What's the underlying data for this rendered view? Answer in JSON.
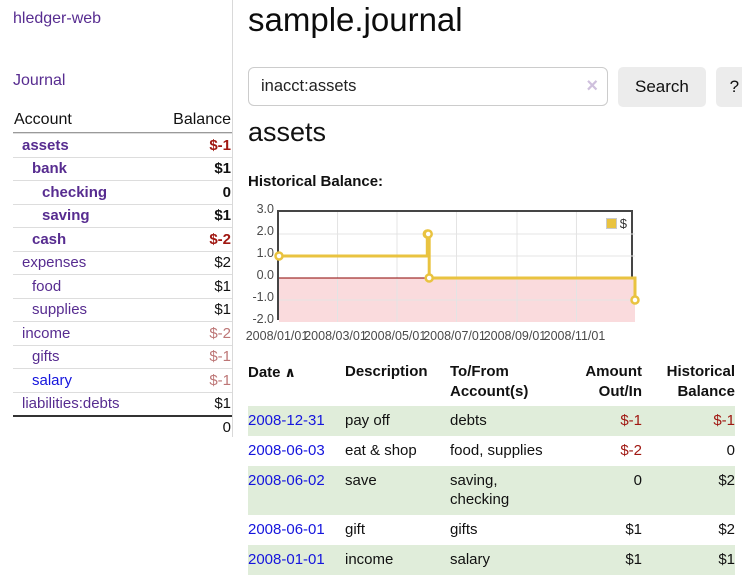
{
  "app": {
    "title": "hledger-web"
  },
  "sidebar": {
    "journal_link": "Journal",
    "accounts": {
      "header": {
        "account": "Account",
        "balance": "Balance"
      },
      "rows": [
        {
          "name": "assets",
          "balance": "$-1"
        },
        {
          "name": "bank",
          "balance": "$1"
        },
        {
          "name": "checking",
          "balance": "0"
        },
        {
          "name": "saving",
          "balance": "$1"
        },
        {
          "name": "cash",
          "balance": "$-2"
        },
        {
          "name": "expenses",
          "balance": "$2"
        },
        {
          "name": "food",
          "balance": "$1"
        },
        {
          "name": "supplies",
          "balance": "$1"
        },
        {
          "name": "income",
          "balance": "$-2"
        },
        {
          "name": "gifts",
          "balance": "$-1"
        },
        {
          "name": "salary",
          "balance": "$-1"
        },
        {
          "name": "liabilities:debts",
          "balance": "$1"
        }
      ],
      "total": "0"
    }
  },
  "header": {
    "title": "sample.journal"
  },
  "search": {
    "query": "inacct:assets",
    "clear_icon": "×",
    "search_button": "Search",
    "help_button": "?"
  },
  "main": {
    "account_heading": "assets"
  },
  "chart_data": {
    "type": "line",
    "style": "step",
    "title": "Historical Balance:",
    "x_domain": [
      "2008-01-01",
      "2008-12-31"
    ],
    "ylim": [
      -2,
      3
    ],
    "y_ticks": [
      "3.0",
      "2.0",
      "1.0",
      "0.0",
      "-1.0",
      "-2.0"
    ],
    "x_ticks": [
      "2008/01/01",
      "2008/03/01",
      "2008/05/01",
      "2008/07/01",
      "2008/09/01",
      "2008/11/01"
    ],
    "series": [
      {
        "name": "$",
        "color": "#e9c340",
        "points": [
          [
            "2008-01-01",
            1
          ],
          [
            "2008-06-01",
            2
          ],
          [
            "2008-06-02",
            2
          ],
          [
            "2008-06-03",
            0
          ],
          [
            "2008-12-31",
            -1
          ]
        ]
      }
    ],
    "legend": {
      "label": "$",
      "position": "top-right"
    },
    "grid": true,
    "negative_region_color": "#fadbdd",
    "zero_line_color": "#8b0000"
  },
  "register_table": {
    "headers": [
      {
        "l1": "Date",
        "l2": "",
        "sort": "∧"
      },
      {
        "l1": "Description",
        "l2": ""
      },
      {
        "l1": "To/From",
        "l2": "Account(s)"
      },
      {
        "l1": "Amount",
        "l2": "Out/In"
      },
      {
        "l1": "Historical",
        "l2": "Balance"
      }
    ],
    "rows": [
      {
        "date": "2008-12-31",
        "description": "pay off",
        "tofrom": "debts",
        "amount": "$-1",
        "balance": "$-1"
      },
      {
        "date": "2008-06-03",
        "description": "eat & shop",
        "tofrom": "food, supplies",
        "amount": "$-2",
        "balance": "0"
      },
      {
        "date": "2008-06-02",
        "description": "save",
        "tofrom": "saving, checking",
        "amount": "0",
        "balance": "$2"
      },
      {
        "date": "2008-06-01",
        "description": "gift",
        "tofrom": "gifts",
        "amount": "$1",
        "balance": "$2"
      },
      {
        "date": "2008-01-01",
        "description": "income",
        "tofrom": "salary",
        "amount": "$1",
        "balance": "$1"
      }
    ]
  },
  "colors": {
    "link_purple": "#572c90",
    "link_blue": "#1515dd",
    "negative_strong": "#a01812",
    "negative_soft": "#bd7676",
    "row_stripe_green": "#e0edda",
    "series_gold": "#e9c340",
    "chart_negative_fill": "#fadbdd",
    "chart_zero_line": "#8b0000"
  }
}
